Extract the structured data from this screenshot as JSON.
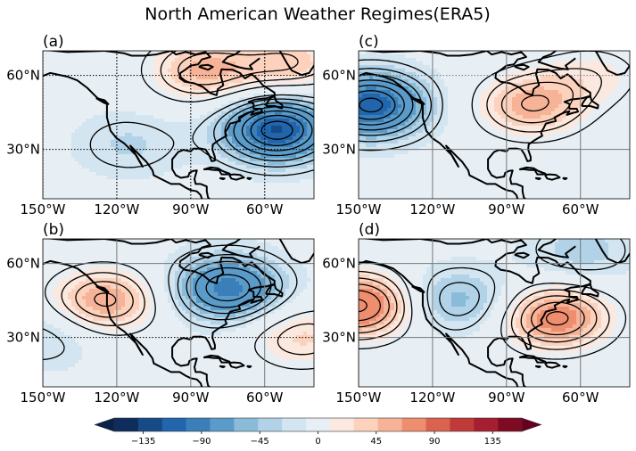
{
  "title": "North American Weather Regimes(ERA5)",
  "chart_data": [
    {
      "type": "heatmap",
      "panel_label": "(a)",
      "xticklabels": [
        "150°W",
        "120°W",
        "90°W",
        "60°W"
      ],
      "yticklabels": [
        "60°N",
        "30°N"
      ],
      "xlim": [
        -150,
        -40
      ],
      "ylim": [
        10,
        70
      ],
      "features": [
        {
          "kind": "positive-center",
          "lon": -85,
          "lat": 62,
          "amp": 55
        },
        {
          "kind": "positive-center",
          "lon": -50,
          "lat": 65,
          "amp": 45
        },
        {
          "kind": "negative-center",
          "lon": -55,
          "lat": 38,
          "amp": -115
        },
        {
          "kind": "negative-center",
          "lon": -115,
          "lat": 32,
          "amp": -25
        }
      ]
    },
    {
      "type": "heatmap",
      "panel_label": "(b)",
      "xticklabels": [
        "150°W",
        "120°W",
        "90°W",
        "60°W"
      ],
      "yticklabels": [
        "60°N",
        "30°N"
      ],
      "xlim": [
        -150,
        -40
      ],
      "ylim": [
        10,
        70
      ],
      "features": [
        {
          "kind": "positive-center",
          "lon": -125,
          "lat": 45,
          "amp": 65
        },
        {
          "kind": "negative-center",
          "lon": -75,
          "lat": 50,
          "amp": -90
        },
        {
          "kind": "positive-center",
          "lon": -45,
          "lat": 30,
          "amp": 40
        },
        {
          "kind": "negative-center",
          "lon": -150,
          "lat": 30,
          "amp": -25
        }
      ]
    },
    {
      "type": "heatmap",
      "panel_label": "(c)",
      "xticklabels": [
        "150°W",
        "120°W",
        "90°W",
        "60°W"
      ],
      "yticklabels": [
        "60°N",
        "30°N"
      ],
      "xlim": [
        -150,
        -40
      ],
      "ylim": [
        10,
        70
      ],
      "features": [
        {
          "kind": "negative-center",
          "lon": -145,
          "lat": 48,
          "amp": -110
        },
        {
          "kind": "positive-center",
          "lon": -80,
          "lat": 48,
          "amp": 60
        },
        {
          "kind": "positive-center",
          "lon": -55,
          "lat": 60,
          "amp": 25
        }
      ]
    },
    {
      "type": "heatmap",
      "panel_label": "(d)",
      "xticklabels": [
        "150°W",
        "120°W",
        "90°W",
        "60°W"
      ],
      "yticklabels": [
        "60°N",
        "30°N"
      ],
      "xlim": [
        -150,
        -40
      ],
      "ylim": [
        10,
        70
      ],
      "features": [
        {
          "kind": "positive-center",
          "lon": -150,
          "lat": 43,
          "amp": 95
        },
        {
          "kind": "negative-center",
          "lon": -110,
          "lat": 45,
          "amp": -45
        },
        {
          "kind": "positive-center",
          "lon": -70,
          "lat": 38,
          "amp": 80
        },
        {
          "kind": "negative-center",
          "lon": -60,
          "lat": 65,
          "amp": -30
        }
      ]
    }
  ],
  "colorbar": {
    "min": -157.5,
    "max": 157.5,
    "step": 15,
    "ticks": [
      -135,
      -90,
      -45,
      0,
      45,
      90,
      135
    ],
    "ticklabels": [
      "−135",
      "−90",
      "−45",
      "0",
      "45",
      "90",
      "135"
    ],
    "colors": [
      "#0e2d5c",
      "#164b87",
      "#2166ac",
      "#3b7fb9",
      "#5a9bc9",
      "#8abbd9",
      "#b1d2e7",
      "#d2e5f0",
      "#e7eff5",
      "#fbe8de",
      "#fcd2bd",
      "#f6b397",
      "#ee8e6f",
      "#d9634f",
      "#c03a39",
      "#a51f30",
      "#7f0b22"
    ],
    "extend_low_color": "#0a2247",
    "extend_high_color": "#67001f"
  },
  "contour_levels": [
    -150,
    -135,
    -120,
    -105,
    -90,
    -75,
    -60,
    -45,
    -30,
    -15,
    15,
    30,
    45,
    60,
    75,
    90,
    105,
    120,
    135,
    150
  ]
}
